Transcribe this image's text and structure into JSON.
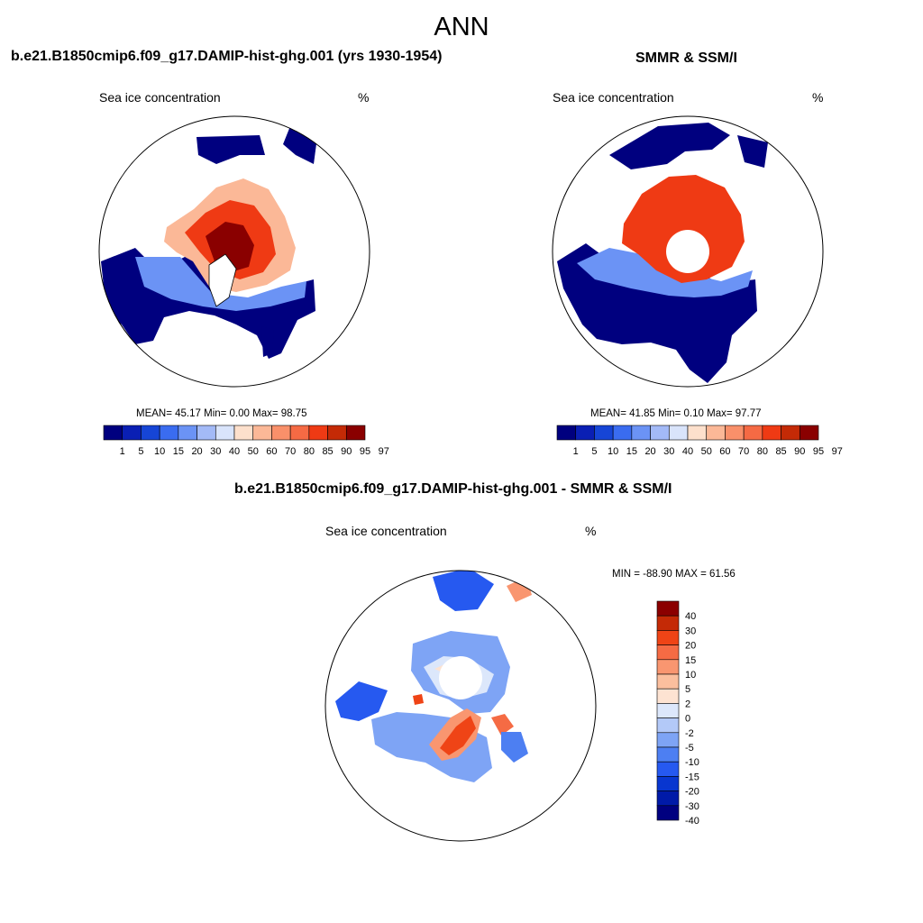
{
  "figure": {
    "title": "ANN"
  },
  "panel_left": {
    "title": "b.e21.B1850cmip6.f09_g17.DAMIP-hist-ghg.001 (yrs 1930-1954)",
    "subtitle": "Sea ice concentration",
    "units": "%",
    "stats": "MEAN=  45.17  Min=   0.00  Max=  98.75"
  },
  "panel_right": {
    "title": "SMMR & SSM/I",
    "subtitle": "Sea ice concentration",
    "units": "%",
    "stats": "MEAN=  41.85  Min=   0.10  Max=  97.77"
  },
  "panel_diff": {
    "title": "b.e21.B1850cmip6.f09_g17.DAMIP-hist-ghg.001 - SMMR & SSM/I",
    "subtitle": "Sea ice concentration",
    "units": "%",
    "minmax": "MIN = -88.90 MAX =  61.56"
  },
  "colors": {
    "conc": [
      "#00007f",
      "#0a1fb4",
      "#1645d6",
      "#3a6cf0",
      "#6b93f5",
      "#a3baf7",
      "#d9e4fb",
      "#fde0cc",
      "#fbb897",
      "#f9906a",
      "#f56a44",
      "#ef3a14",
      "#c42a06",
      "#8a0000"
    ],
    "diff": [
      "#000080",
      "#001aa8",
      "#0836d0",
      "#2659f0",
      "#4d7ff2",
      "#7ea4f5",
      "#b3c9f8",
      "#dce7fb",
      "#fde3d2",
      "#fbbf9e",
      "#f99670",
      "#f56b44",
      "#ef4416",
      "#c42a06",
      "#8b0000"
    ],
    "coast": "#000000"
  },
  "chart_data": [
    {
      "type": "heatmap",
      "title": "b.e21.B1850cmip6.f09_g17.DAMIP-hist-ghg.001 (yrs 1930-1954)",
      "variable": "Sea ice concentration",
      "units": "%",
      "projection": "polar stereographic (Arctic)",
      "levels": [
        "1",
        "5",
        "10",
        "15",
        "20",
        "30",
        "40",
        "50",
        "60",
        "70",
        "80",
        "85",
        "90",
        "95",
        "97"
      ],
      "mean": 45.17,
      "min": 0.0,
      "max": 98.75
    },
    {
      "type": "heatmap",
      "title": "SMMR & SSM/I",
      "variable": "Sea ice concentration",
      "units": "%",
      "projection": "polar stereographic (Arctic)",
      "levels": [
        "1",
        "5",
        "10",
        "15",
        "20",
        "30",
        "40",
        "50",
        "60",
        "70",
        "80",
        "85",
        "90",
        "95",
        "97"
      ],
      "mean": 41.85,
      "min": 0.1,
      "max": 97.77
    },
    {
      "type": "heatmap",
      "title": "b.e21.B1850cmip6.f09_g17.DAMIP-hist-ghg.001 - SMMR & SSM/I",
      "variable": "Sea ice concentration",
      "units": "%",
      "projection": "polar stereographic (Arctic)",
      "levels": [
        "40",
        "30",
        "20",
        "15",
        "10",
        "5",
        "2",
        "0",
        "-2",
        "-5",
        "-10",
        "-15",
        "-20",
        "-30",
        "-40"
      ],
      "min": -88.9,
      "max": 61.56
    }
  ]
}
